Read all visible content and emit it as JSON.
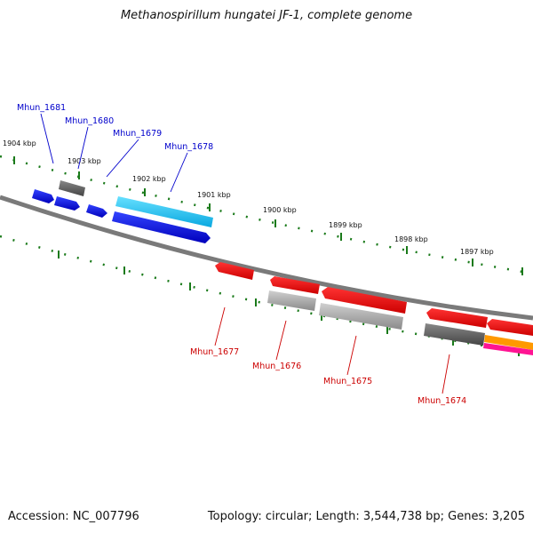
{
  "header": {
    "title": "Methanospirillum hungatei JF-1, complete genome"
  },
  "footer": {
    "accession": "Accession: NC_007796",
    "summary": "Topology: circular; Length: 3,544,738 bp; Genes: 3,205"
  },
  "kbp_labels": [
    "1904 kbp",
    "1903 kbp",
    "1902 kbp",
    "1901 kbp",
    "1900 kbp",
    "1899 kbp",
    "1898 kbp",
    "1897 kbp"
  ],
  "genes_top": [
    {
      "label": "Mhun_1681",
      "color": "#0000cc"
    },
    {
      "label": "Mhun_1680",
      "color": "#0000cc"
    },
    {
      "label": "Mhun_1679",
      "color": "#0000cc"
    },
    {
      "label": "Mhun_1678",
      "color": "#0000cc"
    }
  ],
  "genes_bottom": [
    {
      "label": "Mhun_1677",
      "color": "#cc0000"
    },
    {
      "label": "Mhun_1676",
      "color": "#cc0000"
    },
    {
      "label": "Mhun_1675",
      "color": "#cc0000"
    },
    {
      "label": "Mhun_1674",
      "color": "#cc0000"
    }
  ],
  "colors": {
    "forward_gene": "#0a0af0",
    "forward_gene_light": "#22c8f0",
    "reverse_gene": "#ee0000",
    "pseudo_gray": "#9a9a9a",
    "dark_gray": "#555555",
    "orange": "#ff9900",
    "magenta": "#ff1493",
    "tick_green": "#1a7a1a",
    "backbone": "#777777"
  }
}
